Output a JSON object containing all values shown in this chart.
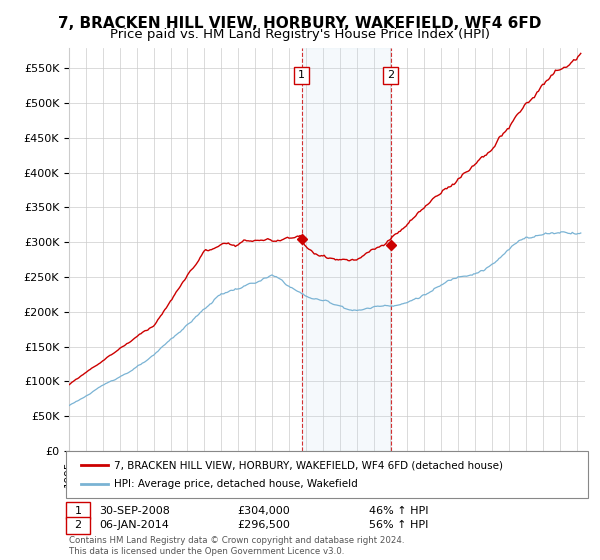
{
  "title": "7, BRACKEN HILL VIEW, HORBURY, WAKEFIELD, WF4 6FD",
  "subtitle": "Price paid vs. HM Land Registry's House Price Index (HPI)",
  "ylabel_ticks": [
    "£0",
    "£50K",
    "£100K",
    "£150K",
    "£200K",
    "£250K",
    "£300K",
    "£350K",
    "£400K",
    "£450K",
    "£500K",
    "£550K"
  ],
  "ytick_vals": [
    0,
    50000,
    100000,
    150000,
    200000,
    250000,
    300000,
    350000,
    400000,
    450000,
    500000,
    550000
  ],
  "ylim": [
    0,
    580000
  ],
  "xlim_start": 1995.0,
  "xlim_end": 2025.5,
  "marker1_x": 2008.75,
  "marker1_y": 304000,
  "marker2_x": 2014.02,
  "marker2_y": 296500,
  "price_color": "#cc0000",
  "hpi_color": "#7ab3d4",
  "shade_color": "#ddeeff",
  "background_color": "#ffffff",
  "grid_color": "#cccccc",
  "title_fontsize": 11,
  "subtitle_fontsize": 9.5,
  "tick_fontsize": 8,
  "marker1_date": "30-SEP-2008",
  "marker1_price": "£304,000",
  "marker1_hpi": "46% ↑ HPI",
  "marker2_date": "06-JAN-2014",
  "marker2_price": "£296,500",
  "marker2_hpi": "56% ↑ HPI",
  "legend_line1": "7, BRACKEN HILL VIEW, HORBURY, WAKEFIELD, WF4 6FD (detached house)",
  "legend_line2": "HPI: Average price, detached house, Wakefield",
  "footer_text": "Contains HM Land Registry data © Crown copyright and database right 2024.\nThis data is licensed under the Open Government Licence v3.0."
}
